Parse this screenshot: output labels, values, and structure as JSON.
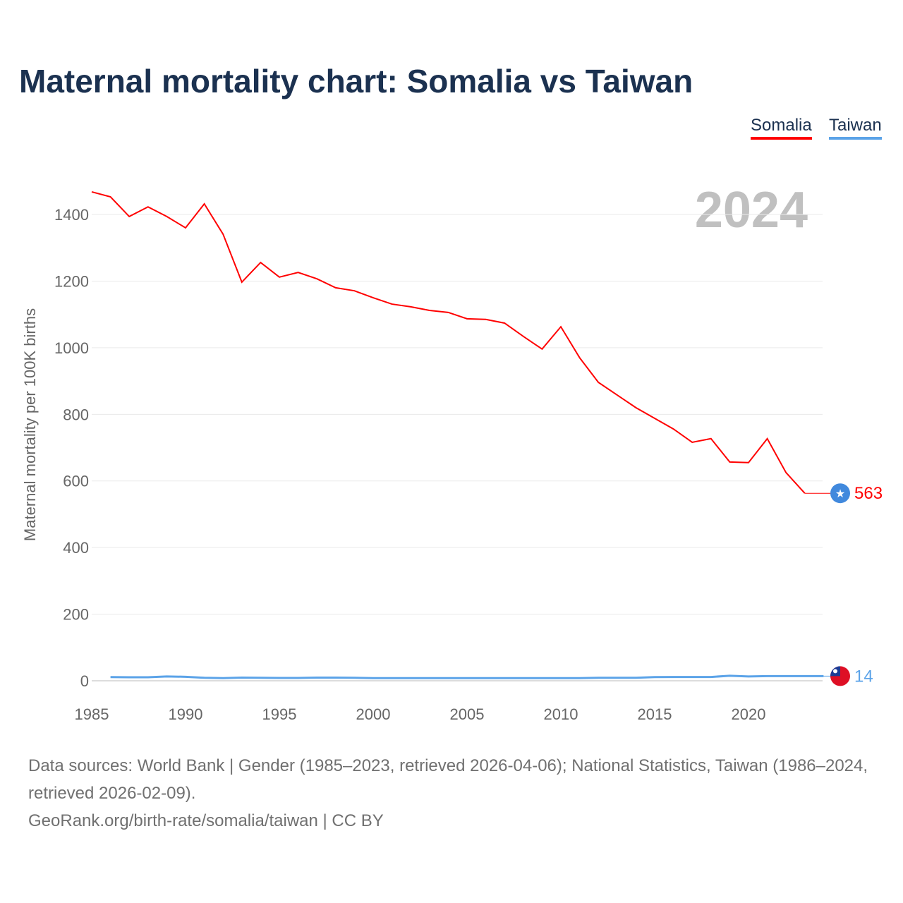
{
  "title": "Maternal mortality chart: Somalia vs Taiwan",
  "year_label": "2024",
  "footer": {
    "line1": "Data sources: World Bank | Gender (1985–2023, retrieved 2026-04-06); National Statistics, Taiwan (1986–2024, retrieved 2026-02-09).",
    "line2": "GeoRank.org/birth-rate/somalia/taiwan | CC BY"
  },
  "chart_data": {
    "type": "line",
    "title": "Maternal mortality chart: Somalia vs Taiwan",
    "xlabel": "",
    "ylabel": "Maternal mortality per 100K births",
    "xlim": [
      1985,
      2024
    ],
    "ylim": [
      0,
      1450
    ],
    "xticks": [
      1985,
      1990,
      1995,
      2000,
      2005,
      2010,
      2015,
      2020
    ],
    "yticks": [
      0,
      200,
      400,
      600,
      800,
      1000,
      1200,
      1400
    ],
    "grid": true,
    "legend": "top-right",
    "series": [
      {
        "name": "Somalia",
        "color": "#ff0000",
        "end_label": "563",
        "x": [
          1985,
          1986,
          1987,
          1988,
          1989,
          1990,
          1991,
          1992,
          1993,
          1994,
          1995,
          1996,
          1997,
          1998,
          1999,
          2000,
          2001,
          2002,
          2003,
          2004,
          2005,
          2006,
          2007,
          2008,
          2009,
          2010,
          2011,
          2012,
          2013,
          2014,
          2015,
          2016,
          2017,
          2018,
          2019,
          2020,
          2021,
          2022,
          2023
        ],
        "values": [
          1468,
          1453,
          1394,
          1423,
          1394,
          1360,
          1432,
          1341,
          1197,
          1256,
          1212,
          1226,
          1207,
          1180,
          1171,
          1150,
          1131,
          1123,
          1112,
          1106,
          1087,
          1085,
          1074,
          1034,
          996,
          1063,
          970,
          896,
          858,
          820,
          788,
          756,
          716,
          727,
          657,
          655,
          727,
          625,
          563
        ]
      },
      {
        "name": "Taiwan",
        "color": "#5ba3e8",
        "end_label": "14",
        "x": [
          1986,
          1987,
          1988,
          1989,
          1990,
          1991,
          1992,
          1993,
          1994,
          1995,
          1996,
          1997,
          1998,
          1999,
          2000,
          2001,
          2002,
          2003,
          2004,
          2005,
          2006,
          2007,
          2008,
          2009,
          2010,
          2011,
          2012,
          2013,
          2014,
          2015,
          2016,
          2017,
          2018,
          2019,
          2020,
          2021,
          2022,
          2023,
          2024
        ],
        "values": [
          11,
          10.5,
          10.5,
          13,
          12,
          9,
          8,
          9.5,
          9,
          8.5,
          8.5,
          9.5,
          9.5,
          9,
          8,
          8,
          8,
          8,
          8,
          8,
          8,
          8,
          8,
          8,
          8,
          8,
          9,
          9,
          9,
          11,
          11.5,
          11.5,
          11.5,
          15,
          13,
          14,
          14,
          14,
          14
        ]
      }
    ]
  }
}
